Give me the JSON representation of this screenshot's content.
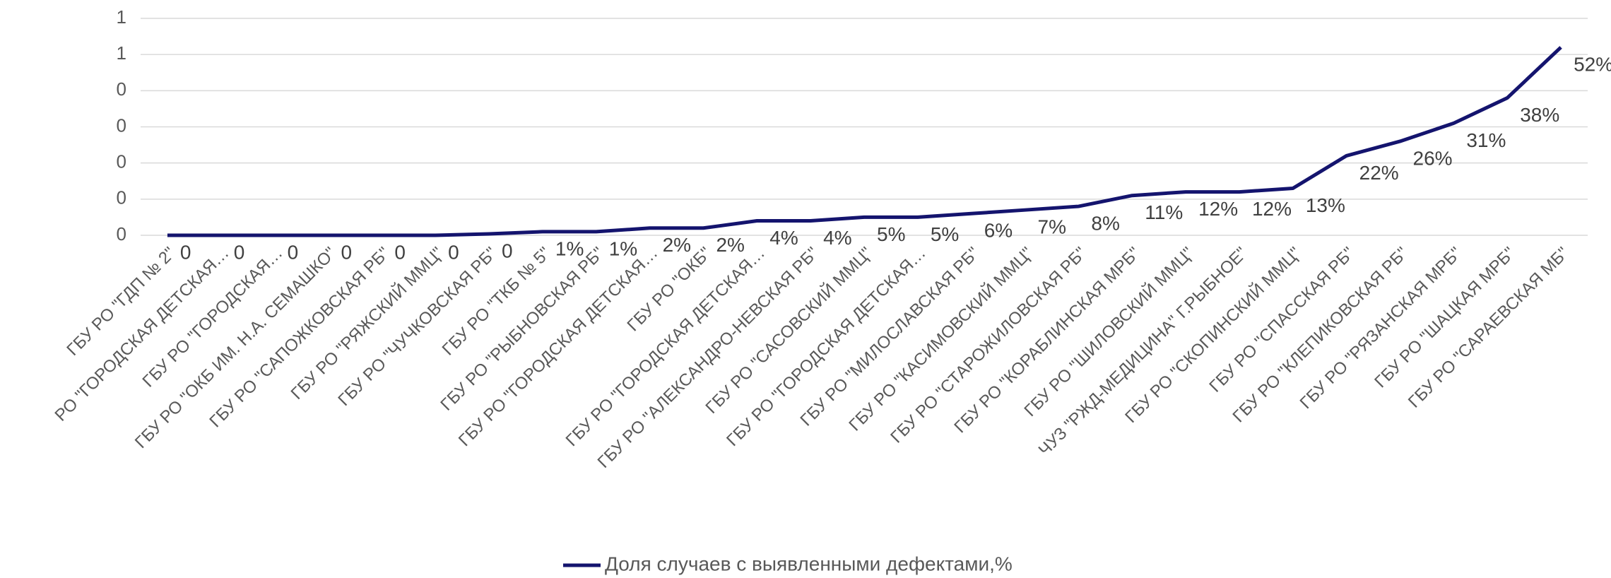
{
  "chart_data": {
    "type": "line",
    "categories": [
      "ГБУ РО \"ГДП № 2\"",
      "РО \"ГОРОДСКАЯ ДЕТСКАЯ…",
      "ГБУ РО \"ГОРОДСКАЯ…",
      "ГБУ РО \"ОКБ ИМ. Н.А. СЕМАШКО\"",
      "ГБУ РО \"САПОЖКОВСКАЯ РБ\"",
      "ГБУ РО \"РЯЖСКИЙ ММЦ\"",
      "ГБУ РО \"ЧУЧКОВСКАЯ РБ\"",
      "ГБУ РО \"ТКБ № 5\"",
      "ГБУ РО \"РЫБНОВСКАЯ РБ\"",
      "ГБУ РО \"ГОРОДСКАЯ ДЕТСКАЯ…",
      "ГБУ РО \"ОКБ\"",
      "ГБУ РО \"ГОРОДСКАЯ ДЕТСКАЯ…",
      "ГБУ РО \"АЛЕКСАНДРО-НЕВСКАЯ РБ\"",
      "ГБУ РО \"САСОВСКИЙ ММЦ\"",
      "ГБУ РО \"ГОРОДСКАЯ ДЕТСКАЯ…",
      "ГБУ РО \"МИЛОСЛАВСКАЯ РБ\"",
      "ГБУ РО \"КАСИМОВСКИЙ ММЦ\"",
      "ГБУ РО \"СТАРОЖИЛОВСКАЯ РБ\"",
      "ГБУ РО \"КОРАБЛИНСКАЯ МРБ\"",
      "ГБУ РО \"ШИЛОВСКИЙ ММЦ\"",
      "ЧУЗ \"РЖД-МЕДИЦИНА\" Г.РЫБНОЕ\"",
      "ГБУ РО \"СКОПИНСКИЙ ММЦ\"",
      "ГБУ РО \"СПАССКАЯ РБ\"",
      "ГБУ РО \"КЛЕПИКОВСКАЯ РБ\"",
      "ГБУ РО \"РЯЗАНСКАЯ МРБ\"",
      "ГБУ РО \"ШАЦКАЯ МРБ\"",
      "ГБУ РО \"САРАЕВСКАЯ МБ\""
    ],
    "series": [
      {
        "name": "Доля случаев с выявленными дефектами,%",
        "color": "#14146e",
        "values": [
          0,
          0,
          0,
          0,
          0,
          0,
          0.004,
          0.01,
          0.01,
          0.02,
          0.02,
          0.04,
          0.04,
          0.05,
          0.05,
          0.06,
          0.07,
          0.08,
          0.11,
          0.12,
          0.12,
          0.13,
          0.22,
          0.26,
          0.31,
          0.38,
          0.52
        ],
        "value_labels": [
          "0",
          "0",
          "0",
          "0",
          "0",
          "0",
          "0",
          "1%",
          "1%",
          "2%",
          "2%",
          "4%",
          "4%",
          "5%",
          "5%",
          "6%",
          "7%",
          "8%",
          "11%",
          "12%",
          "12%",
          "13%",
          "22%",
          "26%",
          "31%",
          "38%",
          "52%"
        ]
      }
    ],
    "ylim": [
      0,
      0.6
    ],
    "yticks": [
      0,
      {
        "value": 0.1,
        "label": "0"
      },
      {
        "value": 0.2,
        "label": "0"
      },
      {
        "value": 0.3,
        "label": "0"
      },
      {
        "value": 0.4,
        "label": "0"
      },
      {
        "value": 0.5,
        "label": "1"
      },
      {
        "value": 0.6,
        "label": "1"
      }
    ],
    "grid": true,
    "legend": "bottom"
  }
}
